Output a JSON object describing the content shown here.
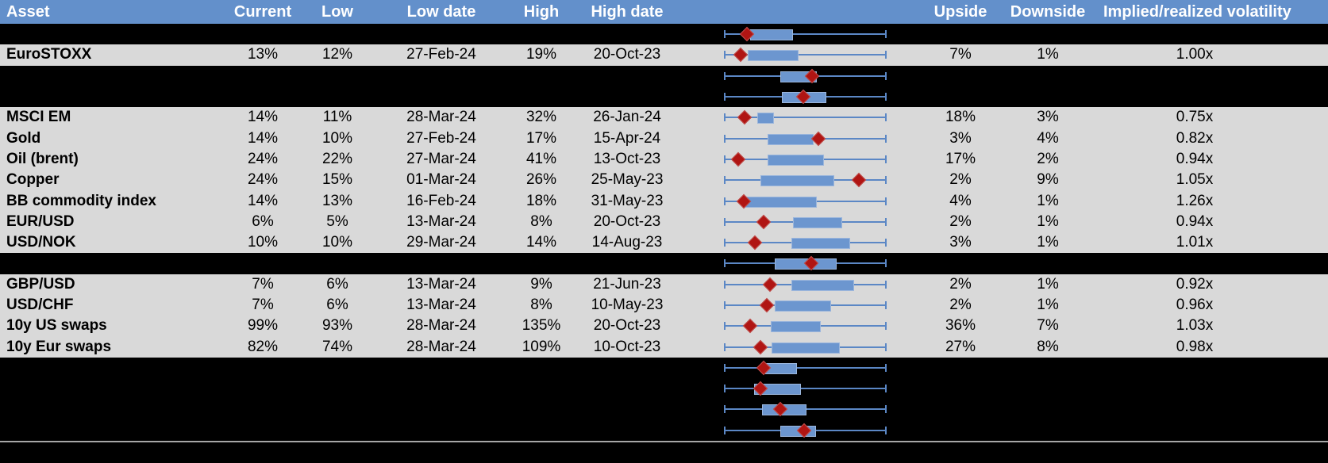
{
  "header": {
    "asset": "Asset",
    "current": "Current",
    "low": "Low",
    "low_date": "Low date",
    "high": "High",
    "high_date": "High date",
    "range_chart": "",
    "upside": "Upside",
    "downside": "Downside",
    "implied": "Implied/realized volatility"
  },
  "colors": {
    "header_bg": "#6390CB",
    "header_text": "#FFFFFF",
    "row_light_bg": "#D9D9D9",
    "row_dark_bg": "#000000",
    "text": "#000000",
    "whisker_blue": "#5B87C5",
    "box_fill": "#6C96CF",
    "box_border": "#9BB6DC",
    "marker_red": "#B01513",
    "separator_gray": "#A6A6A6"
  },
  "rows": [
    {
      "variant": "dark",
      "asset": "",
      "current": "",
      "low": "",
      "low_date": "",
      "high": "",
      "high_date": "",
      "upside": "",
      "downside": "",
      "implied": "",
      "plot": {
        "box": [
          0.16,
          0.413
        ],
        "marker": 0.14
      }
    },
    {
      "variant": "light",
      "asset": "EuroSTOXX",
      "current": "13%",
      "low": "12%",
      "low_date": "27-Feb-24",
      "high": "19%",
      "high_date": "20-Oct-23",
      "upside": "7%",
      "downside": "1%",
      "implied": "1.00x",
      "plot": {
        "box": [
          0.145,
          0.449
        ],
        "marker": 0.101
      }
    },
    {
      "variant": "dark",
      "asset": "",
      "current": "",
      "low": "",
      "low_date": "",
      "high": "",
      "high_date": "",
      "upside": "",
      "downside": "",
      "implied": "",
      "plot": {
        "box": [
          0.348,
          0.56
        ],
        "marker": 0.54
      }
    },
    {
      "variant": "dark",
      "asset": "",
      "current": "",
      "low": "",
      "low_date": "",
      "high": "",
      "high_date": "",
      "upside": "",
      "downside": "",
      "implied": "",
      "plot": {
        "box": [
          0.356,
          0.62
        ],
        "marker": 0.486
      }
    },
    {
      "variant": "light",
      "asset": "MSCI EM",
      "current": "14%",
      "low": "11%",
      "low_date": "28-Mar-24",
      "high": "32%",
      "high_date": "26-Jan-24",
      "upside": "18%",
      "downside": "3%",
      "implied": "0.75x",
      "plot": {
        "box": [
          0.206,
          0.299
        ],
        "marker": 0.125
      }
    },
    {
      "variant": "light",
      "asset": "Gold",
      "current": "14%",
      "low": "10%",
      "low_date": "27-Feb-24",
      "high": "17%",
      "high_date": "15-Apr-24",
      "upside": "3%",
      "downside": "4%",
      "implied": "0.82x",
      "plot": {
        "box": [
          0.267,
          0.54
        ],
        "marker": 0.579
      }
    },
    {
      "variant": "light",
      "asset": "Oil (brent)",
      "current": "24%",
      "low": "22%",
      "low_date": "27-Mar-24",
      "high": "41%",
      "high_date": "13-Oct-23",
      "upside": "17%",
      "downside": "2%",
      "implied": "0.94x",
      "plot": {
        "box": [
          0.267,
          0.603
        ],
        "marker": 0.086
      }
    },
    {
      "variant": "light",
      "asset": "Copper",
      "current": "24%",
      "low": "15%",
      "low_date": "01-Mar-24",
      "high": "26%",
      "high_date": "25-May-23",
      "upside": "2%",
      "downside": "9%",
      "implied": "1.05x",
      "plot": {
        "box": [
          0.223,
          0.668
        ],
        "marker": 0.828
      }
    },
    {
      "variant": "light",
      "asset": "BB commodity index",
      "current": "14%",
      "low": "13%",
      "low_date": "16-Feb-24",
      "high": "18%",
      "high_date": "31-May-23",
      "upside": "4%",
      "downside": "1%",
      "implied": "1.26x",
      "plot": {
        "box": [
          0.133,
          0.56
        ],
        "marker": 0.12
      }
    },
    {
      "variant": "light",
      "asset": "EUR/USD",
      "current": "6%",
      "low": "5%",
      "low_date": "13-Mar-24",
      "high": "8%",
      "high_date": "20-Oct-23",
      "upside": "2%",
      "downside": "1%",
      "implied": "0.94x",
      "plot": {
        "box": [
          0.424,
          0.717
        ],
        "marker": 0.242
      }
    },
    {
      "variant": "light",
      "asset": "USD/NOK",
      "current": "10%",
      "low": "10%",
      "low_date": "29-Mar-24",
      "high": "14%",
      "high_date": "14-Aug-23",
      "upside": "3%",
      "downside": "1%",
      "implied": "1.01x",
      "plot": {
        "box": [
          0.416,
          0.766
        ],
        "marker": 0.192
      }
    },
    {
      "variant": "dark",
      "asset": "",
      "current": "",
      "low": "",
      "low_date": "",
      "high": "",
      "high_date": "",
      "upside": "",
      "downside": "",
      "implied": "",
      "plot": {
        "box": [
          0.312,
          0.682
        ],
        "marker": 0.535
      }
    },
    {
      "variant": "light",
      "asset": "GBP/USD",
      "current": "7%",
      "low": "6%",
      "low_date": "13-Mar-24",
      "high": "9%",
      "high_date": "21-Jun-23",
      "upside": "2%",
      "downside": "1%",
      "implied": "0.92x",
      "plot": {
        "box": [
          0.413,
          0.79
        ],
        "marker": 0.284
      }
    },
    {
      "variant": "light",
      "asset": "USD/CHF",
      "current": "7%",
      "low": "6%",
      "low_date": "13-Mar-24",
      "high": "8%",
      "high_date": "10-May-23",
      "upside": "2%",
      "downside": "1%",
      "implied": "0.96x",
      "plot": {
        "box": [
          0.312,
          0.65
        ],
        "marker": 0.262
      }
    },
    {
      "variant": "light",
      "asset": "10y US swaps",
      "current": "99%",
      "low": "93%",
      "low_date": "28-Mar-24",
      "high": "135%",
      "high_date": "20-Oct-23",
      "upside": "36%",
      "downside": "7%",
      "implied": "1.03x",
      "plot": {
        "box": [
          0.288,
          0.584
        ],
        "marker": 0.161
      }
    },
    {
      "variant": "light",
      "asset": "10y Eur swaps",
      "current": "82%",
      "low": "74%",
      "low_date": "28-Mar-24",
      "high": "109%",
      "high_date": "10-Oct-23",
      "upside": "27%",
      "downside": "8%",
      "implied": "0.98x",
      "plot": {
        "box": [
          0.291,
          0.701
        ],
        "marker": 0.226
      }
    },
    {
      "variant": "dark",
      "asset": "",
      "current": "",
      "low": "",
      "low_date": "",
      "high": "",
      "high_date": "",
      "upside": "",
      "downside": "",
      "implied": "",
      "plot": {
        "box": [
          0.254,
          0.439
        ],
        "marker": 0.244
      }
    },
    {
      "variant": "dark",
      "asset": "",
      "current": "",
      "low": "",
      "low_date": "",
      "high": "",
      "high_date": "",
      "upside": "",
      "downside": "",
      "implied": "",
      "plot": {
        "box": [
          0.185,
          0.465
        ],
        "marker": 0.226
      }
    },
    {
      "variant": "dark",
      "asset": "",
      "current": "",
      "low": "",
      "low_date": "",
      "high": "",
      "high_date": "",
      "upside": "",
      "downside": "",
      "implied": "",
      "plot": {
        "box": [
          0.234,
          0.498
        ],
        "marker": 0.348
      }
    },
    {
      "variant": "dark",
      "asset": "",
      "current": "",
      "low": "",
      "low_date": "",
      "high": "",
      "high_date": "",
      "upside": "",
      "downside": "",
      "implied": "",
      "plot": {
        "box": [
          0.348,
          0.555
        ],
        "marker": 0.494
      }
    }
  ],
  "chart_data": {
    "type": "table",
    "columns": [
      "Asset",
      "Current",
      "Low",
      "Low date",
      "High",
      "High date",
      "Upside",
      "Downside",
      "Implied/realized volatility"
    ],
    "rows": [
      [
        "EuroSTOXX",
        "13%",
        "12%",
        "27-Feb-24",
        "19%",
        "20-Oct-23",
        "7%",
        "1%",
        "1.00x"
      ],
      [
        "MSCI EM",
        "14%",
        "11%",
        "28-Mar-24",
        "32%",
        "26-Jan-24",
        "18%",
        "3%",
        "0.75x"
      ],
      [
        "Gold",
        "14%",
        "10%",
        "27-Feb-24",
        "17%",
        "15-Apr-24",
        "3%",
        "4%",
        "0.82x"
      ],
      [
        "Oil (brent)",
        "24%",
        "22%",
        "27-Mar-24",
        "41%",
        "13-Oct-23",
        "17%",
        "2%",
        "0.94x"
      ],
      [
        "Copper",
        "24%",
        "15%",
        "01-Mar-24",
        "26%",
        "25-May-23",
        "2%",
        "9%",
        "1.05x"
      ],
      [
        "BB commodity index",
        "14%",
        "13%",
        "16-Feb-24",
        "18%",
        "31-May-23",
        "4%",
        "1%",
        "1.26x"
      ],
      [
        "EUR/USD",
        "6%",
        "5%",
        "13-Mar-24",
        "8%",
        "20-Oct-23",
        "2%",
        "1%",
        "0.94x"
      ],
      [
        "USD/NOK",
        "10%",
        "10%",
        "29-Mar-24",
        "14%",
        "14-Aug-23",
        "3%",
        "1%",
        "1.01x"
      ],
      [
        "GBP/USD",
        "7%",
        "6%",
        "13-Mar-24",
        "9%",
        "21-Jun-23",
        "2%",
        "1%",
        "0.92x"
      ],
      [
        "USD/CHF",
        "7%",
        "6%",
        "13-Mar-24",
        "8%",
        "10-May-23",
        "2%",
        "1%",
        "0.96x"
      ],
      [
        "10y US swaps",
        "99%",
        "93%",
        "28-Mar-24",
        "135%",
        "20-Oct-23",
        "36%",
        "7%",
        "1.03x"
      ],
      [
        "10y Eur swaps",
        "82%",
        "74%",
        "28-Mar-24",
        "109%",
        "10-Oct-23",
        "27%",
        "8%",
        "0.98x"
      ]
    ],
    "embedded_boxplots": {
      "type": "box",
      "orientation": "horizontal",
      "x_normalized_range": [
        0,
        1
      ],
      "marker_glyph": "red diamond",
      "per_row": [
        {
          "row": 1,
          "label": "",
          "box": [
            0.16,
            0.413
          ],
          "marker": 0.14
        },
        {
          "row": 2,
          "label": "EuroSTOXX",
          "box": [
            0.145,
            0.449
          ],
          "marker": 0.101
        },
        {
          "row": 3,
          "label": "",
          "box": [
            0.348,
            0.56
          ],
          "marker": 0.54
        },
        {
          "row": 4,
          "label": "",
          "box": [
            0.356,
            0.62
          ],
          "marker": 0.486
        },
        {
          "row": 5,
          "label": "MSCI EM",
          "box": [
            0.206,
            0.299
          ],
          "marker": 0.125
        },
        {
          "row": 6,
          "label": "Gold",
          "box": [
            0.267,
            0.54
          ],
          "marker": 0.579
        },
        {
          "row": 7,
          "label": "Oil (brent)",
          "box": [
            0.267,
            0.603
          ],
          "marker": 0.086
        },
        {
          "row": 8,
          "label": "Copper",
          "box": [
            0.223,
            0.668
          ],
          "marker": 0.828
        },
        {
          "row": 9,
          "label": "BB commodity index",
          "box": [
            0.133,
            0.56
          ],
          "marker": 0.12
        },
        {
          "row": 10,
          "label": "EUR/USD",
          "box": [
            0.424,
            0.717
          ],
          "marker": 0.242
        },
        {
          "row": 11,
          "label": "USD/NOK",
          "box": [
            0.416,
            0.766
          ],
          "marker": 0.192
        },
        {
          "row": 12,
          "label": "",
          "box": [
            0.312,
            0.682
          ],
          "marker": 0.535
        },
        {
          "row": 13,
          "label": "GBP/USD",
          "box": [
            0.413,
            0.79
          ],
          "marker": 0.284
        },
        {
          "row": 14,
          "label": "USD/CHF",
          "box": [
            0.312,
            0.65
          ],
          "marker": 0.262
        },
        {
          "row": 15,
          "label": "10y US swaps",
          "box": [
            0.288,
            0.584
          ],
          "marker": 0.161
        },
        {
          "row": 16,
          "label": "10y Eur swaps",
          "box": [
            0.291,
            0.701
          ],
          "marker": 0.226
        },
        {
          "row": 17,
          "label": "",
          "box": [
            0.254,
            0.439
          ],
          "marker": 0.244
        },
        {
          "row": 18,
          "label": "",
          "box": [
            0.185,
            0.465
          ],
          "marker": 0.226
        },
        {
          "row": 19,
          "label": "",
          "box": [
            0.234,
            0.498
          ],
          "marker": 0.348
        },
        {
          "row": 20,
          "label": "",
          "box": [
            0.348,
            0.555
          ],
          "marker": 0.494
        }
      ]
    }
  }
}
